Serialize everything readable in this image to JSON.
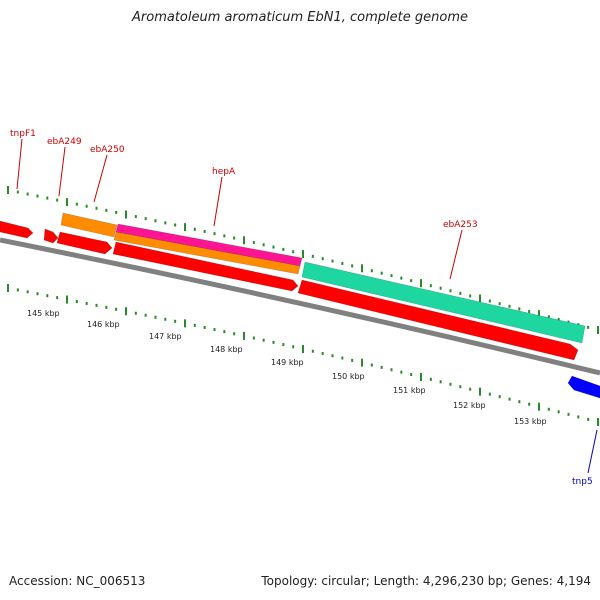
{
  "title": "Aromatoleum aromaticum EbN1, complete genome",
  "footer": {
    "accession": "Accession: NC_006513",
    "summary": "Topology: circular; Length: 4,296,230 bp; Genes: 4,194"
  },
  "colors": {
    "backbone": "#808080",
    "tick": "#2a8a2a",
    "label_red": "#cc0000",
    "label_blue": "#0000cc",
    "gene_red": "#ff0000",
    "gene_orange": "#ff8c00",
    "gene_pink": "#ff1493",
    "gene_teal": "#1dd6a0",
    "gene_blue": "#0000ff"
  },
  "scale": {
    "tick_labels": [
      "145 kbp",
      "146 kbp",
      "147 kbp",
      "148 kbp",
      "149 kbp",
      "150 kbp",
      "151 kbp",
      "152 kbp",
      "153 kbp"
    ]
  },
  "gene_labels": [
    {
      "text": "tnpF1",
      "color": "red"
    },
    {
      "text": "ebA249",
      "color": "red"
    },
    {
      "text": "ebA250",
      "color": "red"
    },
    {
      "text": "hepA",
      "color": "red"
    },
    {
      "text": "ebA253",
      "color": "red"
    },
    {
      "text": "tnp5",
      "color": "blue"
    }
  ]
}
